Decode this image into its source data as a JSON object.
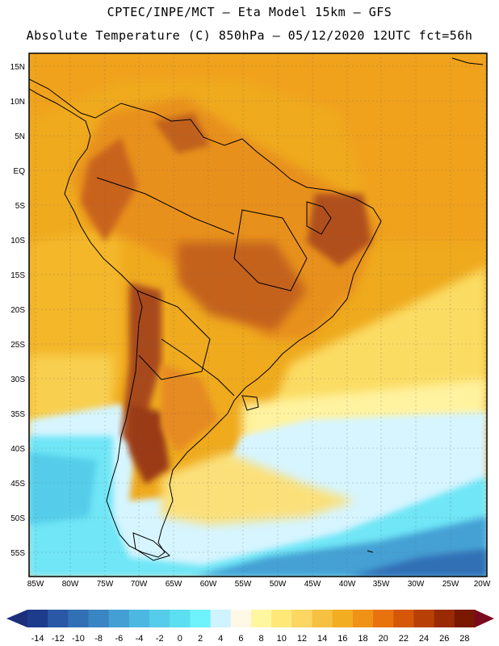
{
  "header": {
    "line1": "CPTEC/INPE/MCT –  Eta Model 15km – GFS",
    "line2": "Absolute Temperature (C) 850hPa – 05/12/2020 12UTC fct=56h"
  },
  "map": {
    "region": "South America",
    "lat_labels": [
      "15N",
      "10N",
      "5N",
      "EQ",
      "5S",
      "10S",
      "15S",
      "20S",
      "25S",
      "30S",
      "35S",
      "40S",
      "45S",
      "50S",
      "55S"
    ],
    "lon_labels": [
      "85W",
      "80W",
      "75W",
      "70W",
      "65W",
      "60W",
      "55W",
      "50W",
      "45W",
      "40W",
      "35W",
      "30W",
      "25W",
      "20W"
    ]
  },
  "legend": {
    "labels": [
      "-14",
      "-12",
      "-10",
      "-8",
      "-6",
      "-4",
      "-2",
      "0",
      "2",
      "4",
      "6",
      "8",
      "10",
      "12",
      "14",
      "16",
      "18",
      "20",
      "22",
      "24",
      "26",
      "28"
    ],
    "colors": [
      "#1e3c8c",
      "#2a58a6",
      "#3270b6",
      "#3a86c4",
      "#44a0d4",
      "#4cb8e2",
      "#55cdea",
      "#5cdff0",
      "#6ef3fc",
      "#cff3ff",
      "#fff8e6",
      "#fff7a0",
      "#ffe878",
      "#fbd660",
      "#f6c040",
      "#f2ad20",
      "#f09216",
      "#e8720e",
      "#d45808",
      "#b84006",
      "#9a2a04",
      "#7a1804"
    ],
    "under_color": "#1b2f7d",
    "over_color": "#7a0a20"
  }
}
